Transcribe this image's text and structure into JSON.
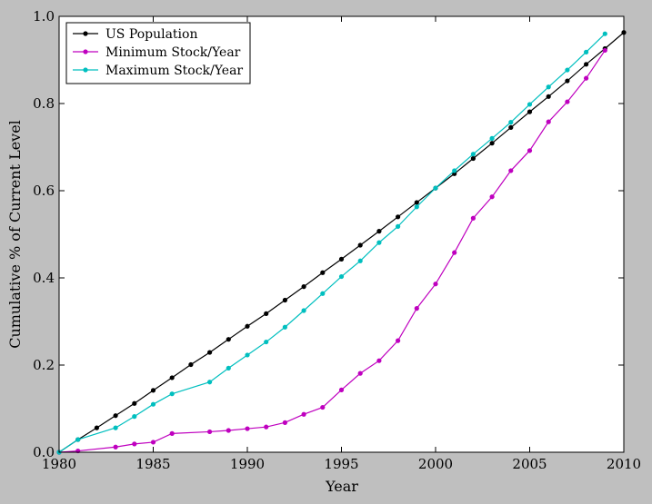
{
  "chart_data": {
    "type": "line",
    "title": "",
    "xlabel": "Year",
    "ylabel": "Cumulative % of Current Level",
    "xlim": [
      1980,
      2010
    ],
    "ylim": [
      0.0,
      1.0
    ],
    "xticks": [
      1980,
      1985,
      1990,
      1995,
      2000,
      2005,
      2010
    ],
    "xtick_labels": [
      "1980",
      "1985",
      "1990",
      "1995",
      "2000",
      "2005",
      "2010"
    ],
    "yticks": [
      0.0,
      0.2,
      0.4,
      0.6,
      0.8,
      1.0
    ],
    "ytick_labels": [
      "0.0",
      "0.2",
      "0.4",
      "0.6",
      "0.8",
      "1.0"
    ],
    "grid": false,
    "legend_position": "top-left",
    "series": [
      {
        "name": "US Population",
        "color": "#000000",
        "x": [
          1980,
          1981,
          1982,
          1983,
          1984,
          1985,
          1986,
          1987,
          1988,
          1989,
          1990,
          1991,
          1992,
          1993,
          1994,
          1995,
          1996,
          1997,
          1998,
          1999,
          2000,
          2001,
          2002,
          2003,
          2004,
          2005,
          2006,
          2007,
          2008,
          2009,
          2010
        ],
        "y": [
          0.0,
          0.029,
          0.056,
          0.084,
          0.112,
          0.142,
          0.171,
          0.201,
          0.229,
          0.259,
          0.289,
          0.318,
          0.349,
          0.38,
          0.412,
          0.443,
          0.475,
          0.507,
          0.54,
          0.573,
          0.606,
          0.639,
          0.674,
          0.709,
          0.745,
          0.781,
          0.816,
          0.852,
          0.89,
          0.926,
          0.963
        ]
      },
      {
        "name": "Minimum Stock/Year",
        "color": "#bf00bf",
        "x": [
          1980,
          1981,
          1983,
          1984,
          1985,
          1986,
          1988,
          1989,
          1990,
          1991,
          1992,
          1993,
          1994,
          1995,
          1996,
          1997,
          1998,
          1999,
          2000,
          2001,
          2002,
          2003,
          2004,
          2005,
          2006,
          2007,
          2008,
          2009
        ],
        "y": [
          0.0,
          0.003,
          0.012,
          0.019,
          0.023,
          0.043,
          0.047,
          0.05,
          0.054,
          0.058,
          0.068,
          0.087,
          0.103,
          0.143,
          0.181,
          0.21,
          0.256,
          0.33,
          0.386,
          0.458,
          0.537,
          0.586,
          0.646,
          0.692,
          0.758,
          0.804,
          0.858,
          0.922
        ]
      },
      {
        "name": "Maximum Stock/Year",
        "color": "#00bfbf",
        "x": [
          1980,
          1981,
          1983,
          1984,
          1985,
          1986,
          1988,
          1989,
          1990,
          1991,
          1992,
          1993,
          1994,
          1995,
          1996,
          1997,
          1998,
          1999,
          2000,
          2001,
          2002,
          2003,
          2004,
          2005,
          2006,
          2007,
          2008,
          2009
        ],
        "y": [
          0.0,
          0.029,
          0.056,
          0.082,
          0.11,
          0.134,
          0.161,
          0.193,
          0.223,
          0.253,
          0.287,
          0.325,
          0.364,
          0.403,
          0.439,
          0.481,
          0.518,
          0.563,
          0.606,
          0.646,
          0.684,
          0.72,
          0.757,
          0.798,
          0.838,
          0.877,
          0.918,
          0.96
        ]
      }
    ]
  }
}
